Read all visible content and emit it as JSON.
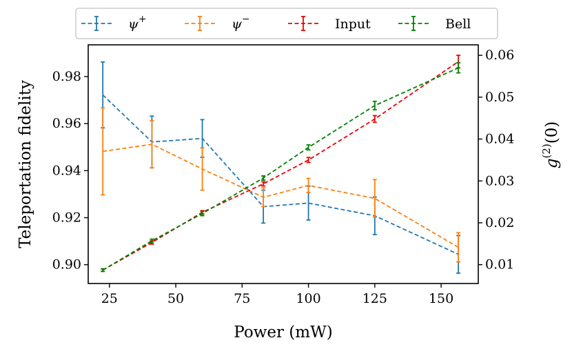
{
  "chart_data": {
    "type": "line",
    "xlabel": "Power (mW)",
    "ylabel_left": "Teleportation fidelity",
    "ylabel_right": "g(2)(0)",
    "ylabel_right_parts": {
      "base": "g",
      "sup": "(2)",
      "tail": "(0)"
    },
    "xlim": [
      17,
      164
    ],
    "ylim_left": [
      0.892,
      0.9935
    ],
    "ylim_right": [
      0.0055,
      0.0625
    ],
    "x_ticks": [
      25,
      50,
      75,
      100,
      125,
      150
    ],
    "x_tick_labels": [
      "25",
      "50",
      "75",
      "100",
      "125",
      "150"
    ],
    "y_left_ticks": [
      0.9,
      0.92,
      0.94,
      0.96,
      0.98
    ],
    "y_left_tick_labels": [
      "0.90",
      "0.92",
      "0.94",
      "0.96",
      "0.98"
    ],
    "y_right_ticks": [
      0.01,
      0.02,
      0.03,
      0.04,
      0.05,
      0.06
    ],
    "y_right_tick_labels": [
      "0.01",
      "0.02",
      "0.03",
      "0.04",
      "0.05",
      "0.06"
    ],
    "series": [
      {
        "name": "ψ+",
        "label_base": "ψ",
        "label_sup": "+",
        "axis": "left",
        "color": "#1f77b4",
        "x": [
          22.5,
          41,
          60,
          83,
          100,
          125,
          156.5
        ],
        "values": [
          0.9722,
          0.9522,
          0.9537,
          0.9247,
          0.9262,
          0.9208,
          0.9044
        ],
        "errors": [
          0.014,
          0.011,
          0.008,
          0.007,
          0.0072,
          0.008,
          0.008
        ]
      },
      {
        "name": "ψ−",
        "label_base": "ψ",
        "label_sup": "−",
        "axis": "left",
        "color": "#ff7f0e",
        "x": [
          22.5,
          41,
          60,
          83,
          100,
          125,
          156.5
        ],
        "values": [
          0.9482,
          0.9512,
          0.9407,
          0.9287,
          0.9337,
          0.9282,
          0.9074
        ],
        "errors": [
          0.0185,
          0.01,
          0.009,
          0.004,
          0.003,
          0.008,
          0.0062
        ]
      },
      {
        "name": "Input",
        "axis": "right",
        "color": "#ee0000",
        "x": [
          22.5,
          41,
          60,
          83,
          100,
          125,
          156.5
        ],
        "values": [
          0.0087,
          0.0153,
          0.0225,
          0.0293,
          0.035,
          0.0448,
          0.0585
        ],
        "errors": [
          0.0003,
          0.0004,
          0.0004,
          0.0005,
          0.0006,
          0.0008,
          0.0015
        ]
      },
      {
        "name": "Bell",
        "axis": "right",
        "color": "#008000",
        "x": [
          22.5,
          41,
          60,
          83,
          100,
          125,
          156.5
        ],
        "values": [
          0.0087,
          0.0157,
          0.0222,
          0.0307,
          0.038,
          0.048,
          0.057
        ],
        "errors": [
          0.0003,
          0.0004,
          0.0005,
          0.0005,
          0.0006,
          0.001,
          0.0012
        ]
      }
    ],
    "legend_position": "top-center"
  }
}
